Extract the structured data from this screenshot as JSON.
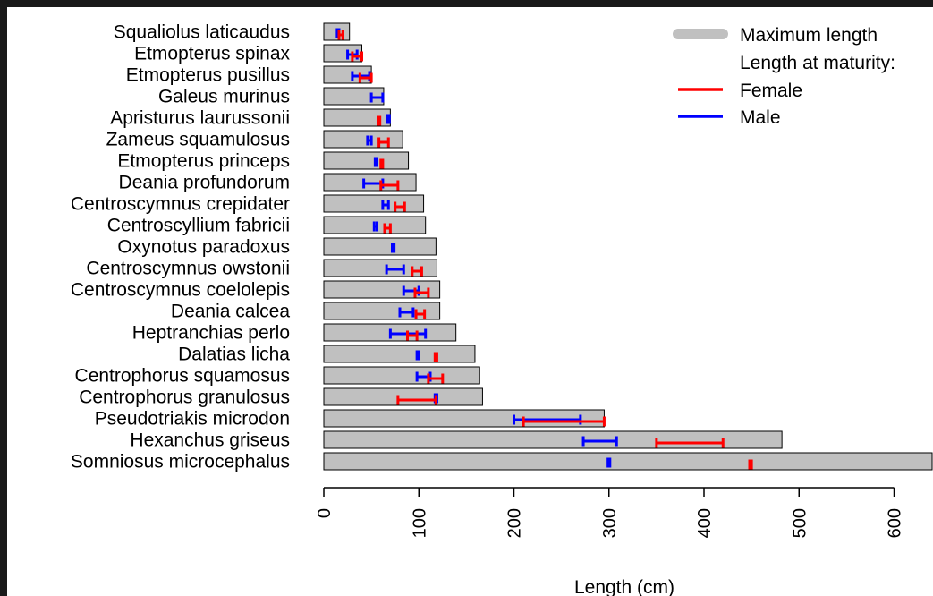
{
  "chart_data": {
    "type": "bar",
    "orientation": "horizontal",
    "title": "",
    "xlabel": "Length (cm)",
    "ylabel": "",
    "xlim": [
      0,
      640
    ],
    "x_ticks": [
      0,
      100,
      200,
      300,
      400,
      500,
      600
    ],
    "grid": false,
    "legend_position": "top-right",
    "colors": {
      "bar": "#c0c0c0",
      "female": "#ff0000",
      "male": "#0000ff"
    },
    "legend": {
      "bar_label": "Maximum length",
      "heading": "Length at maturity:",
      "female_label": "Female",
      "male_label": "Male"
    },
    "species": [
      {
        "name": "Squaliolus laticaudus",
        "max_length": 27,
        "female": [
          16,
          20
        ],
        "male": [
          14,
          16
        ]
      },
      {
        "name": "Etmopterus spinax",
        "max_length": 40,
        "female": [
          30,
          40
        ],
        "male": [
          25,
          35
        ]
      },
      {
        "name": "Etmopterus pusillus",
        "max_length": 50,
        "female": [
          38,
          50
        ],
        "male": [
          30,
          48
        ]
      },
      {
        "name": "Galeus murinus",
        "max_length": 63,
        "female": null,
        "male": [
          50,
          62
        ]
      },
      {
        "name": "Apristurus laurussonii",
        "max_length": 70,
        "female": [
          57,
          59
        ],
        "male": [
          67,
          69
        ]
      },
      {
        "name": "Zameus squamulosus",
        "max_length": 83,
        "female": [
          58,
          68
        ],
        "male": [
          46,
          50
        ]
      },
      {
        "name": "Etmopterus princeps",
        "max_length": 89,
        "female": [
          60,
          62
        ],
        "male": [
          54,
          56
        ]
      },
      {
        "name": "Deania profundorum",
        "max_length": 97,
        "female": [
          60,
          78
        ],
        "male": [
          42,
          62
        ]
      },
      {
        "name": "Centroscymnus crepidater",
        "max_length": 105,
        "female": [
          75,
          85
        ],
        "male": [
          62,
          68
        ]
      },
      {
        "name": "Centroscyllium fabricii",
        "max_length": 107,
        "female": [
          64,
          70
        ],
        "male": [
          53,
          56
        ]
      },
      {
        "name": "Oxynotus paradoxus",
        "max_length": 118,
        "female": null,
        "male": [
          72,
          74
        ]
      },
      {
        "name": "Centroscymnus owstonii",
        "max_length": 119,
        "female": [
          93,
          103
        ],
        "male": [
          66,
          84
        ]
      },
      {
        "name": "Centroscymnus coelolepis",
        "max_length": 122,
        "female": [
          96,
          110
        ],
        "male": [
          84,
          100
        ]
      },
      {
        "name": "Deania calcea",
        "max_length": 122,
        "female": [
          97,
          106
        ],
        "male": [
          80,
          94
        ]
      },
      {
        "name": "Heptranchias perlo",
        "max_length": 139,
        "female": [
          88,
          98
        ],
        "male": [
          70,
          107
        ]
      },
      {
        "name": "Dalatias licha",
        "max_length": 159,
        "female": [
          117,
          119
        ],
        "male": [
          98,
          100
        ]
      },
      {
        "name": "Centrophorus squamosus",
        "max_length": 164,
        "female": [
          110,
          125
        ],
        "male": [
          98,
          112
        ]
      },
      {
        "name": "Centrophorus granulosus",
        "max_length": 167,
        "female": [
          78,
          118
        ],
        "male": [
          117,
          119
        ]
      },
      {
        "name": "Pseudotriakis microdon",
        "max_length": 295,
        "female": [
          210,
          295
        ],
        "male": [
          200,
          270
        ]
      },
      {
        "name": "Hexanchus griseus",
        "max_length": 482,
        "female": [
          350,
          420
        ],
        "male": [
          273,
          308
        ]
      },
      {
        "name": "Somniosus microcephalus",
        "max_length": 640,
        "female": [
          448,
          450
        ],
        "male": [
          299,
          301
        ]
      }
    ]
  }
}
